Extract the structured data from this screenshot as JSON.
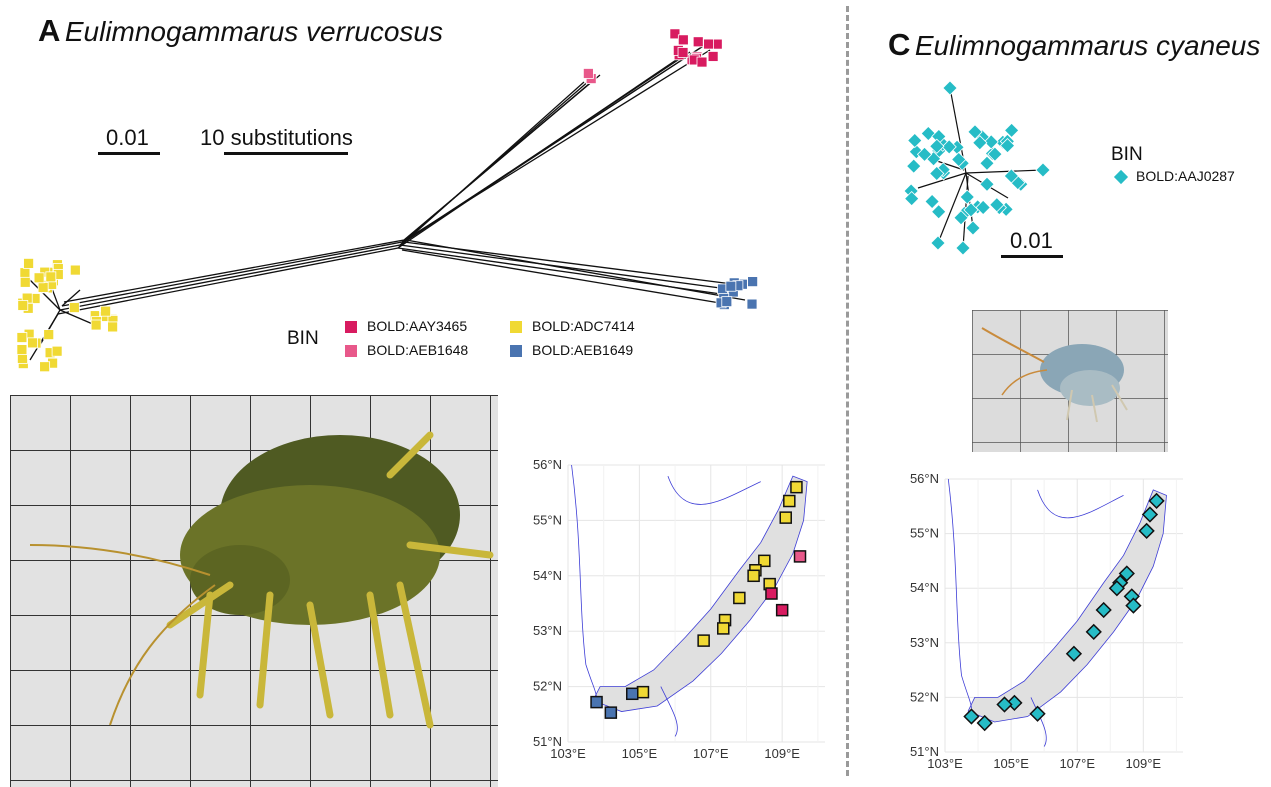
{
  "panels": {
    "a": {
      "letter": "A",
      "species": "Eulimnogammarus verrucosus",
      "scale_main": "0.01",
      "scale_subst": "10 substitutions"
    },
    "c": {
      "letter": "C",
      "species": "Eulimnogammarus cyaneus",
      "scale_main": "0.01"
    }
  },
  "legend_a": {
    "title": "BIN",
    "items": [
      {
        "label": "BOLD:AAY3465",
        "color": "#d81b60",
        "shape": "square"
      },
      {
        "label": "BOLD:AEB1648",
        "color": "#e8588a",
        "shape": "square"
      },
      {
        "label": "BOLD:ADC7414",
        "color": "#f0d934",
        "shape": "square"
      },
      {
        "label": "BOLD:AEB1649",
        "color": "#4a74b0",
        "shape": "square"
      }
    ]
  },
  "legend_c": {
    "title": "BIN",
    "items": [
      {
        "label": "BOLD:AAJ0287",
        "color": "#26bcc6",
        "shape": "diamond"
      }
    ]
  },
  "map_axes": {
    "y_ticks": [
      "56°N",
      "55°N",
      "54°N",
      "53°N",
      "52°N",
      "51°N"
    ],
    "x_ticks": [
      "103°E",
      "105°E",
      "107°E",
      "109°E"
    ]
  },
  "map_a_points": [
    {
      "lon": 109.4,
      "lat": 55.6,
      "bin": "BOLD:ADC7414"
    },
    {
      "lon": 109.2,
      "lat": 55.35,
      "bin": "BOLD:ADC7414"
    },
    {
      "lon": 109.1,
      "lat": 55.05,
      "bin": "BOLD:ADC7414"
    },
    {
      "lon": 109.5,
      "lat": 54.35,
      "bin": "BOLD:AEB1648"
    },
    {
      "lon": 108.5,
      "lat": 54.27,
      "bin": "BOLD:ADC7414"
    },
    {
      "lon": 108.25,
      "lat": 54.1,
      "bin": "BOLD:ADC7414"
    },
    {
      "lon": 108.2,
      "lat": 54.0,
      "bin": "BOLD:ADC7414"
    },
    {
      "lon": 108.65,
      "lat": 53.85,
      "bin": "BOLD:ADC7414"
    },
    {
      "lon": 108.7,
      "lat": 53.68,
      "bin": "BOLD:AAY3465"
    },
    {
      "lon": 107.8,
      "lat": 53.6,
      "bin": "BOLD:ADC7414"
    },
    {
      "lon": 109.0,
      "lat": 53.38,
      "bin": "BOLD:AAY3465"
    },
    {
      "lon": 107.4,
      "lat": 53.2,
      "bin": "BOLD:ADC7414"
    },
    {
      "lon": 107.35,
      "lat": 53.05,
      "bin": "BOLD:ADC7414"
    },
    {
      "lon": 106.8,
      "lat": 52.83,
      "bin": "BOLD:ADC7414"
    },
    {
      "lon": 105.1,
      "lat": 51.9,
      "bin": "BOLD:ADC7414"
    },
    {
      "lon": 104.8,
      "lat": 51.87,
      "bin": "BOLD:AEB1649"
    },
    {
      "lon": 103.8,
      "lat": 51.72,
      "bin": "BOLD:AEB1649"
    },
    {
      "lon": 104.2,
      "lat": 51.53,
      "bin": "BOLD:AEB1649"
    }
  ],
  "map_c_points": [
    {
      "lon": 109.4,
      "lat": 55.6
    },
    {
      "lon": 109.2,
      "lat": 55.35
    },
    {
      "lon": 109.1,
      "lat": 55.05
    },
    {
      "lon": 108.5,
      "lat": 54.27
    },
    {
      "lon": 108.3,
      "lat": 54.1
    },
    {
      "lon": 108.2,
      "lat": 54.0
    },
    {
      "lon": 108.65,
      "lat": 53.85
    },
    {
      "lon": 108.7,
      "lat": 53.68
    },
    {
      "lon": 107.8,
      "lat": 53.6
    },
    {
      "lon": 107.5,
      "lat": 53.2
    },
    {
      "lon": 106.9,
      "lat": 52.8
    },
    {
      "lon": 105.8,
      "lat": 51.7
    },
    {
      "lon": 105.1,
      "lat": 51.9
    },
    {
      "lon": 104.8,
      "lat": 51.87
    },
    {
      "lon": 103.8,
      "lat": 51.65
    },
    {
      "lon": 104.2,
      "lat": 51.53
    }
  ],
  "icons": {
    "photo_a": "amphipod-photo-icon",
    "photo_c": "amphipod-photo-icon"
  }
}
